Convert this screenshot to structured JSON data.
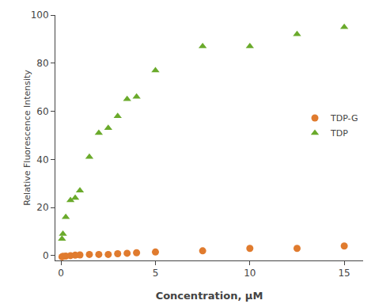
{
  "chart_data": {
    "type": "scatter",
    "x_label": "Concentration, μM",
    "y_label": "Relative Fluorescence Intensity",
    "x": [
      0.05,
      0.1,
      0.25,
      0.5,
      0.75,
      1.0,
      1.5,
      2.0,
      2.5,
      3.0,
      3.5,
      4.0,
      5.0,
      7.5,
      10.0,
      12.5,
      15.0
    ],
    "series": [
      {
        "name": "TDP-G",
        "color": "#e07b2e",
        "marker": "circle",
        "values": [
          -0.5,
          -0.3,
          -0.2,
          0.0,
          0.2,
          0.3,
          0.5,
          0.5,
          0.5,
          0.8,
          1.0,
          1.2,
          1.5,
          2.0,
          3.0,
          3.0,
          4.0
        ]
      },
      {
        "name": "TDP",
        "color": "#6aaa2b",
        "marker": "triangle-up",
        "values": [
          7,
          9,
          16,
          23,
          24,
          27,
          41,
          51,
          53,
          58,
          65,
          66,
          77,
          87,
          87,
          92,
          95
        ]
      }
    ],
    "xlim": [
      -0.3,
      16.0
    ],
    "ylim": [
      -2,
      100
    ],
    "xticks": [
      0,
      5,
      10,
      15
    ],
    "yticks": [
      0,
      20,
      40,
      60,
      80,
      100
    ],
    "grid": false,
    "legend": "right"
  }
}
